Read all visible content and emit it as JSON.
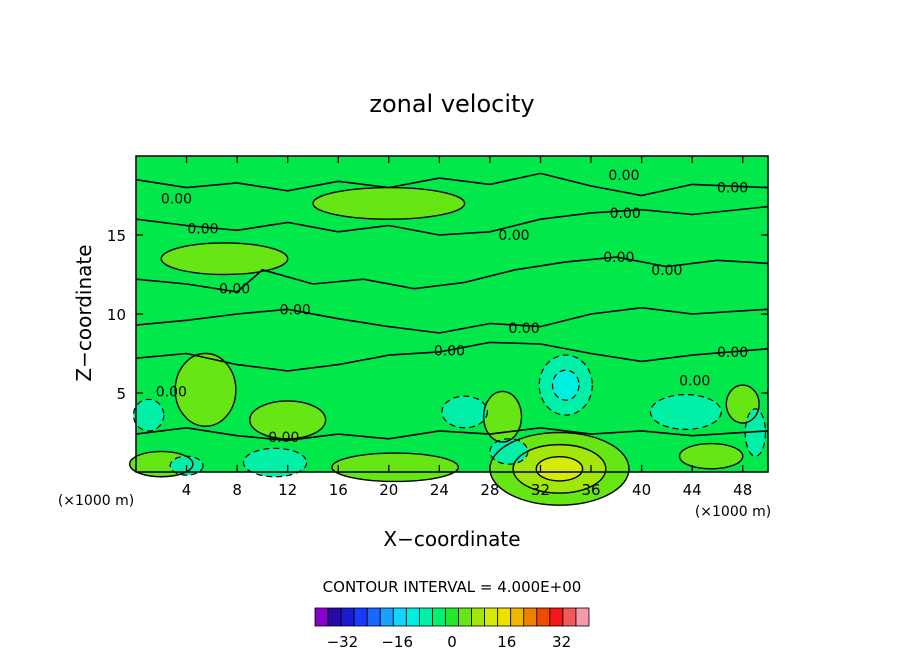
{
  "chart_data": {
    "type": "contour",
    "title": "zonal velocity",
    "xlabel": "X−coordinate",
    "ylabel": "Z−coordinate",
    "x_unit": "(×1000 m)",
    "z_unit": "(×1000 m)",
    "xlim": [
      0,
      50
    ],
    "zlim": [
      0,
      20
    ],
    "x_ticks": [
      "4",
      "8",
      "12",
      "16",
      "20",
      "24",
      "28",
      "32",
      "36",
      "40",
      "44",
      "48"
    ],
    "z_ticks": [
      "5",
      "10",
      "15"
    ],
    "contour_interval_text": "CONTOUR INTERVAL = 4.000E+00",
    "contour_interval": 4,
    "contour_labels": [
      {
        "text": "0.00",
        "x": 3.2,
        "z": 17.3
      },
      {
        "text": "0.00",
        "x": 5.3,
        "z": 15.4
      },
      {
        "text": "0.00",
        "x": 7.8,
        "z": 11.6
      },
      {
        "text": "0.00",
        "x": 12.6,
        "z": 10.3
      },
      {
        "text": "0.00",
        "x": 2.8,
        "z": 5.1
      },
      {
        "text": "0.00",
        "x": 11.7,
        "z": 2.2
      },
      {
        "text": "0.00",
        "x": 24.8,
        "z": 7.7
      },
      {
        "text": "0.00",
        "x": 29.9,
        "z": 15.0
      },
      {
        "text": "0.00",
        "x": 30.7,
        "z": 9.1
      },
      {
        "text": "0.00",
        "x": 38.6,
        "z": 18.8
      },
      {
        "text": "0.00",
        "x": 38.7,
        "z": 16.4
      },
      {
        "text": "0.00",
        "x": 38.2,
        "z": 13.6
      },
      {
        "text": "0.00",
        "x": 42.0,
        "z": 12.8
      },
      {
        "text": "0.00",
        "x": 47.2,
        "z": 18.0
      },
      {
        "text": "0.00",
        "x": 47.2,
        "z": 7.6
      },
      {
        "text": "0.00",
        "x": 44.2,
        "z": 5.8
      }
    ],
    "field_features": [
      {
        "kind": "positive",
        "x": 33.5,
        "z": 0.2,
        "rx": 5.5,
        "rz": 2.3,
        "peak": 12
      },
      {
        "kind": "positive",
        "x": 5.5,
        "z": 5.2,
        "rx": 2.4,
        "rz": 2.3,
        "peak": 5
      },
      {
        "kind": "positive",
        "x": 12.0,
        "z": 3.3,
        "rx": 3.0,
        "rz": 1.2,
        "peak": 5
      },
      {
        "kind": "positive",
        "x": 29.0,
        "z": 3.5,
        "rx": 1.5,
        "rz": 1.6,
        "peak": 4
      },
      {
        "kind": "positive",
        "x": 20.5,
        "z": 0.3,
        "rx": 5.0,
        "rz": 0.9,
        "peak": 5
      },
      {
        "kind": "positive",
        "x": 45.5,
        "z": 1.0,
        "rx": 2.5,
        "rz": 0.8,
        "peak": 4
      },
      {
        "kind": "positive",
        "x": 48.0,
        "z": 4.3,
        "rx": 1.3,
        "rz": 1.2,
        "peak": 4
      },
      {
        "kind": "positive",
        "x": 2.0,
        "z": 0.5,
        "rx": 2.5,
        "rz": 0.8,
        "peak": 4
      },
      {
        "kind": "positive",
        "x": 7.0,
        "z": 13.5,
        "rx": 5.0,
        "rz": 1.0,
        "peak": 3
      },
      {
        "kind": "positive",
        "x": 20.0,
        "z": 17.0,
        "rx": 6.0,
        "rz": 1.0,
        "peak": 3
      },
      {
        "kind": "negative",
        "x": 34.0,
        "z": 5.5,
        "rx": 2.1,
        "rz": 1.9,
        "peak": -8
      },
      {
        "kind": "negative",
        "x": 43.5,
        "z": 3.8,
        "rx": 2.8,
        "rz": 1.1,
        "peak": -5
      },
      {
        "kind": "negative",
        "x": 11.0,
        "z": 0.6,
        "rx": 2.5,
        "rz": 0.9,
        "peak": -4
      },
      {
        "kind": "negative",
        "x": 4.0,
        "z": 0.4,
        "rx": 1.3,
        "rz": 0.6,
        "peak": -4
      },
      {
        "kind": "negative",
        "x": 26.0,
        "z": 3.8,
        "rx": 1.8,
        "rz": 1.0,
        "peak": -4
      },
      {
        "kind": "negative",
        "x": 1.0,
        "z": 3.6,
        "rx": 1.2,
        "rz": 1.0,
        "peak": -4
      },
      {
        "kind": "negative",
        "x": 29.5,
        "z": 1.3,
        "rx": 1.5,
        "rz": 0.8,
        "peak": -4
      },
      {
        "kind": "negative",
        "x": 49.0,
        "z": 2.5,
        "rx": 0.8,
        "rz": 1.5,
        "peak": -4
      }
    ],
    "colorbar": {
      "ticks": [
        "−32",
        "−16",
        "0",
        "16",
        "32"
      ],
      "tick_values": [
        -32,
        -16,
        0,
        16,
        32
      ],
      "levels_min": -40,
      "levels_max": 40,
      "colors": [
        "#8800cc",
        "#2a0aa6",
        "#1a1ad2",
        "#1a3aff",
        "#1a66ff",
        "#1aa0ff",
        "#14d4ff",
        "#00f0e0",
        "#00f0a8",
        "#00f070",
        "#22ea2a",
        "#66e614",
        "#a2e60a",
        "#d6ea0a",
        "#f0e000",
        "#f0b800",
        "#f08000",
        "#f04a00",
        "#f01818",
        "#f05a5a",
        "#f49aaa"
      ]
    }
  }
}
